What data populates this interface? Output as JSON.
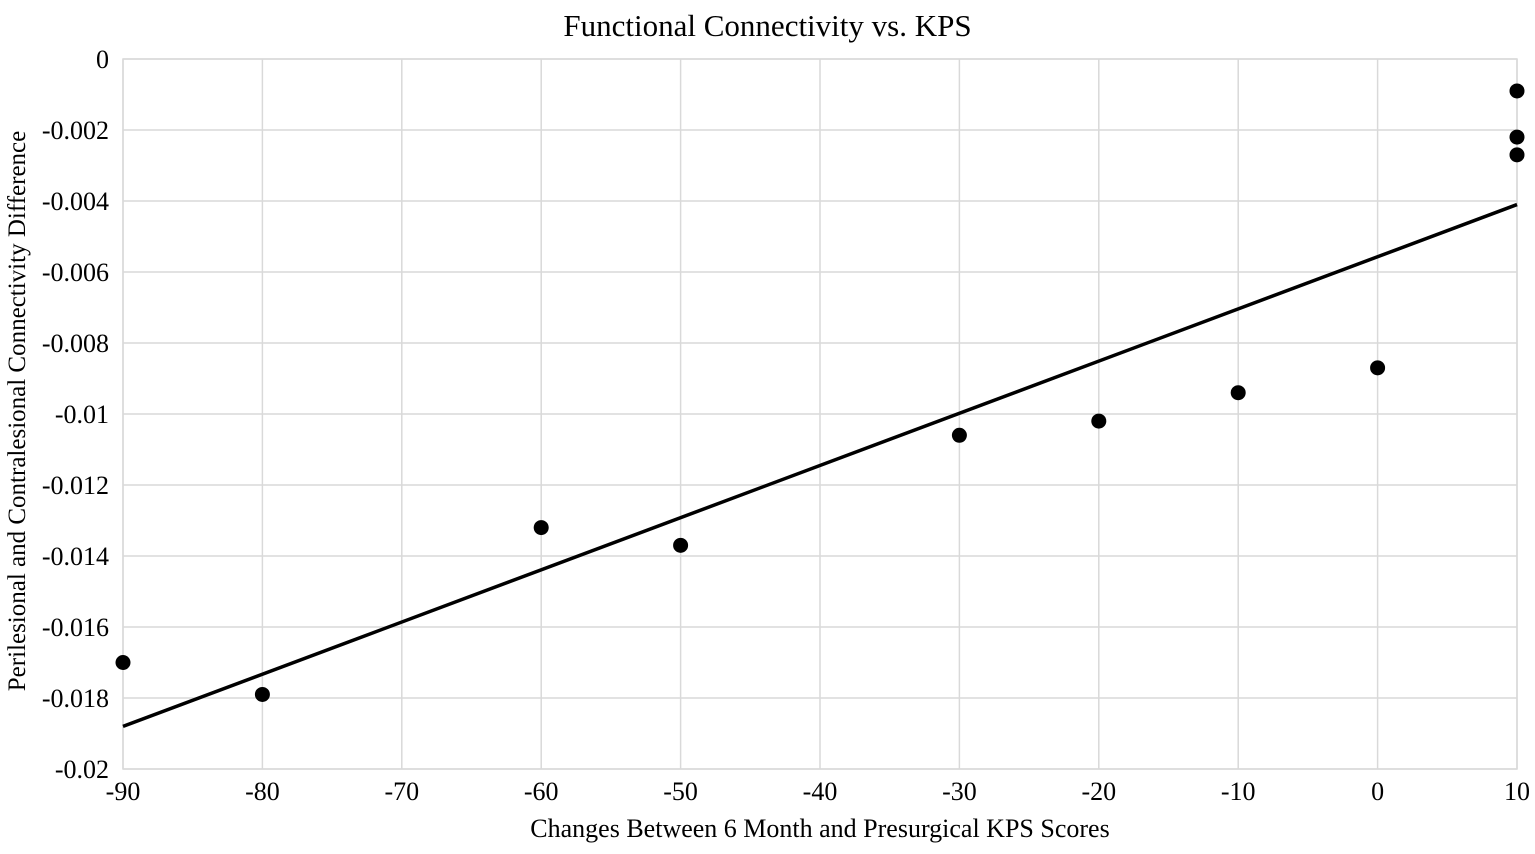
{
  "chart_data": {
    "type": "scatter",
    "title": "Functional Connectivity vs. KPS",
    "xlabel": "Changes Between 6 Month and Presurgical KPS Scores",
    "ylabel": "Perilesional and Contralesional Connectivity Difference",
    "xlim": [
      -90,
      10
    ],
    "ylim": [
      -0.02,
      0
    ],
    "grid": true,
    "legend": "none",
    "x_ticks": [
      -90,
      -80,
      -70,
      -60,
      -50,
      -40,
      -30,
      -20,
      -10,
      0,
      10
    ],
    "x_tick_labels": [
      "-90",
      "-80",
      "-70",
      "-60",
      "-50",
      "-40",
      "-30",
      "-20",
      "-10",
      "0",
      "10"
    ],
    "y_ticks": [
      0,
      -0.002,
      -0.004,
      -0.006,
      -0.008,
      -0.01,
      -0.012,
      -0.014,
      -0.016,
      -0.018,
      -0.02
    ],
    "y_tick_labels": [
      "0",
      "-0.002",
      "-0.004",
      "-0.006",
      "-0.008",
      "-0.01",
      "-0.012",
      "-0.014",
      "-0.016",
      "-0.018",
      "-0.02"
    ],
    "points": [
      {
        "x": -90,
        "y": -0.017
      },
      {
        "x": -80,
        "y": -0.0179
      },
      {
        "x": -60,
        "y": -0.0132
      },
      {
        "x": -50,
        "y": -0.0137
      },
      {
        "x": -30,
        "y": -0.0106
      },
      {
        "x": -20,
        "y": -0.0102
      },
      {
        "x": -10,
        "y": -0.0094
      },
      {
        "x": 0,
        "y": -0.0087
      },
      {
        "x": 10,
        "y": -0.0027
      },
      {
        "x": 10,
        "y": -0.0022
      },
      {
        "x": 10,
        "y": -0.0009
      }
    ],
    "trendline": {
      "x1": -90,
      "y1": -0.0188,
      "x2": 10,
      "y2": -0.0041
    },
    "colors": {
      "point": "#000000",
      "trendline": "#000000",
      "gridline": "#d9d9d9",
      "frame": "#d9d9d9",
      "text": "#000000",
      "background": "#ffffff"
    }
  }
}
